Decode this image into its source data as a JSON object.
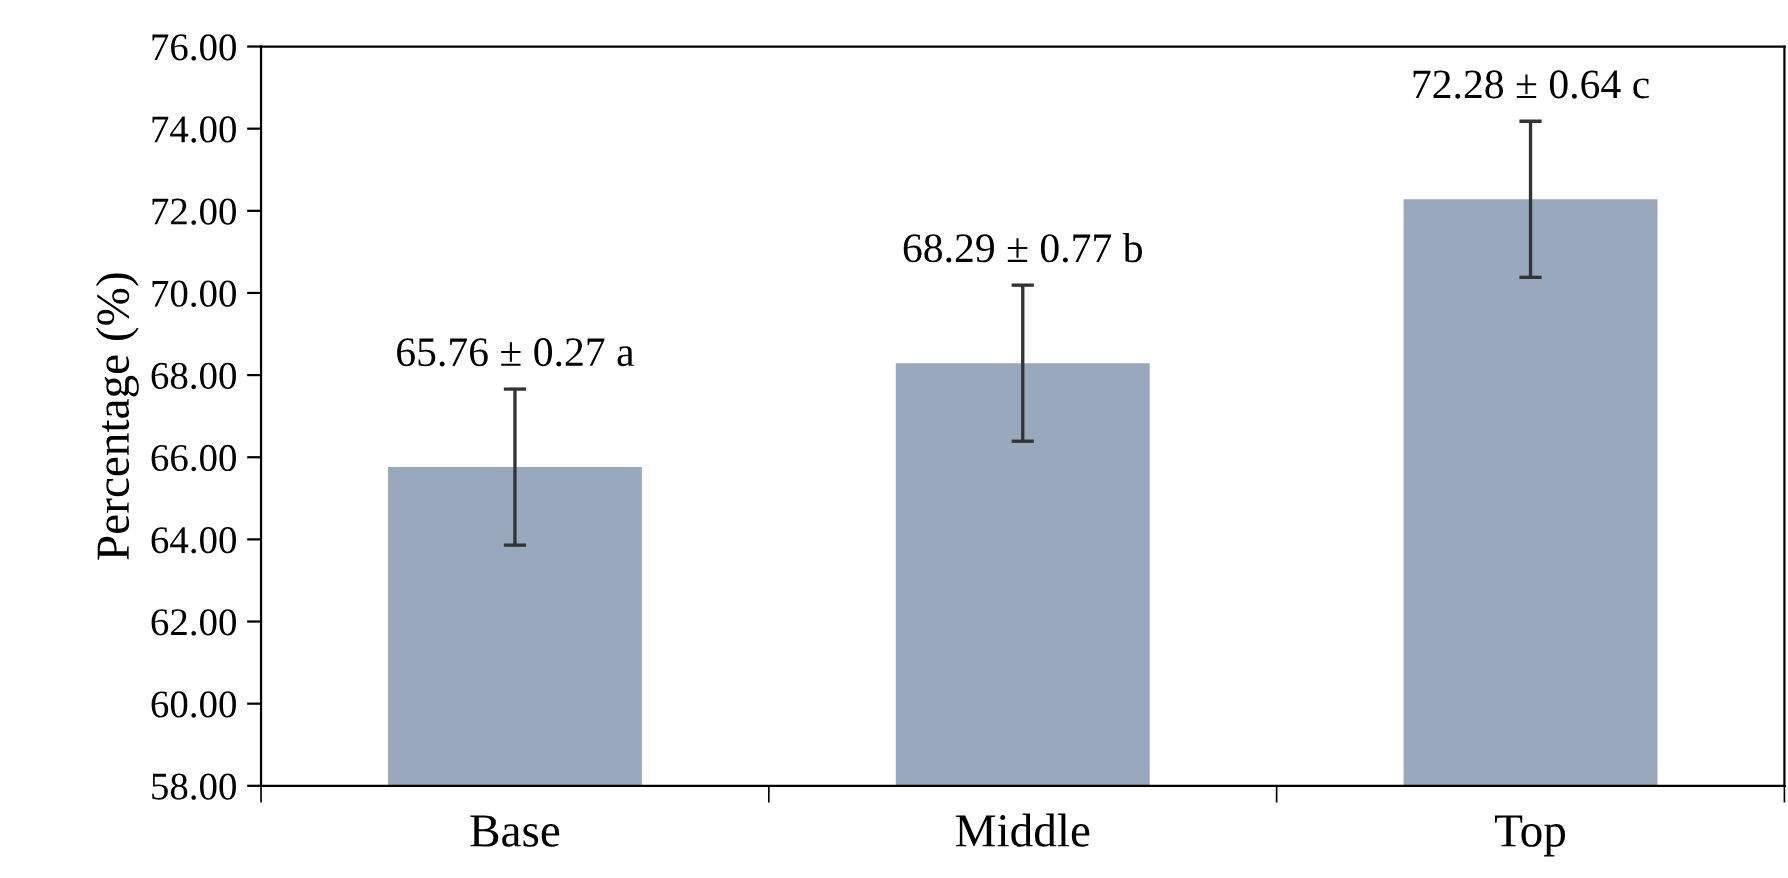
{
  "chart_data": {
    "type": "bar",
    "ylabel": "Percentage (%)",
    "categories": [
      "Base",
      "Middle",
      "Top"
    ],
    "values": [
      65.76,
      68.29,
      72.28
    ],
    "errors": [
      1.9,
      1.9,
      1.9
    ],
    "value_labels": [
      "65.76 ± 0.27 a",
      "68.29 ± 0.77 b",
      "72.28 ± 0.64 c"
    ],
    "color": "#9aa8bd",
    "ylim": [
      58,
      76
    ],
    "yticks": [
      {
        "value": 58,
        "label": "58.00"
      },
      {
        "value": 60,
        "label": "60.00"
      },
      {
        "value": 62,
        "label": "62.00"
      },
      {
        "value": 64,
        "label": "64.00"
      },
      {
        "value": 66,
        "label": "66.00"
      },
      {
        "value": 68,
        "label": "68.00"
      },
      {
        "value": 70,
        "label": "70.00"
      },
      {
        "value": 72,
        "label": "72.00"
      },
      {
        "value": 74,
        "label": "74.00"
      },
      {
        "value": 76,
        "label": "76.00"
      }
    ],
    "grid": false,
    "legend": false
  }
}
